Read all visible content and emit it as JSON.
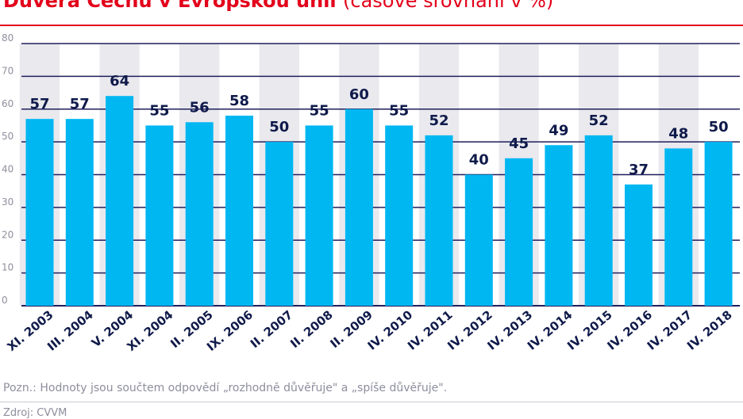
{
  "header": {
    "title_bold": "Důvěra Čechů v Evropskou unii",
    "title_light": "(časové srovnání v %)"
  },
  "footer": {
    "note": "Pozn.: Hodnoty jsou součtem odpovědí „rozhodně důvěřuje\" a „spíše důvěřuje\".",
    "source": "Zdroj: CVVM"
  },
  "colors": {
    "accent": "#e3001b",
    "bar": "#00b7f2",
    "band": "#e9e9ee",
    "axis": "#1f1f5c",
    "value_label": "#0f1a4a",
    "muted": "#8e8e9e"
  },
  "chart_data": {
    "type": "bar",
    "title": "Důvěra Čechů v Evropskou unii (časové srovnání v %)",
    "xlabel": "",
    "ylabel": "",
    "ylim": [
      0,
      80
    ],
    "yticks": [
      0,
      10,
      20,
      30,
      40,
      50,
      60,
      70,
      80
    ],
    "grid": true,
    "categories": [
      "XI. 2003",
      "III. 2004",
      "V. 2004",
      "XI. 2004",
      "II. 2005",
      "IX. 2006",
      "II. 2007",
      "II. 2008",
      "II. 2009",
      "IV. 2010",
      "IV. 2011",
      "IV. 2012",
      "IV. 2013",
      "IV. 2014",
      "IV. 2015",
      "IV. 2016",
      "IV. 2017",
      "IV. 2018"
    ],
    "values": [
      57,
      57,
      64,
      55,
      56,
      58,
      50,
      55,
      60,
      55,
      52,
      40,
      45,
      49,
      52,
      37,
      48,
      50
    ]
  }
}
